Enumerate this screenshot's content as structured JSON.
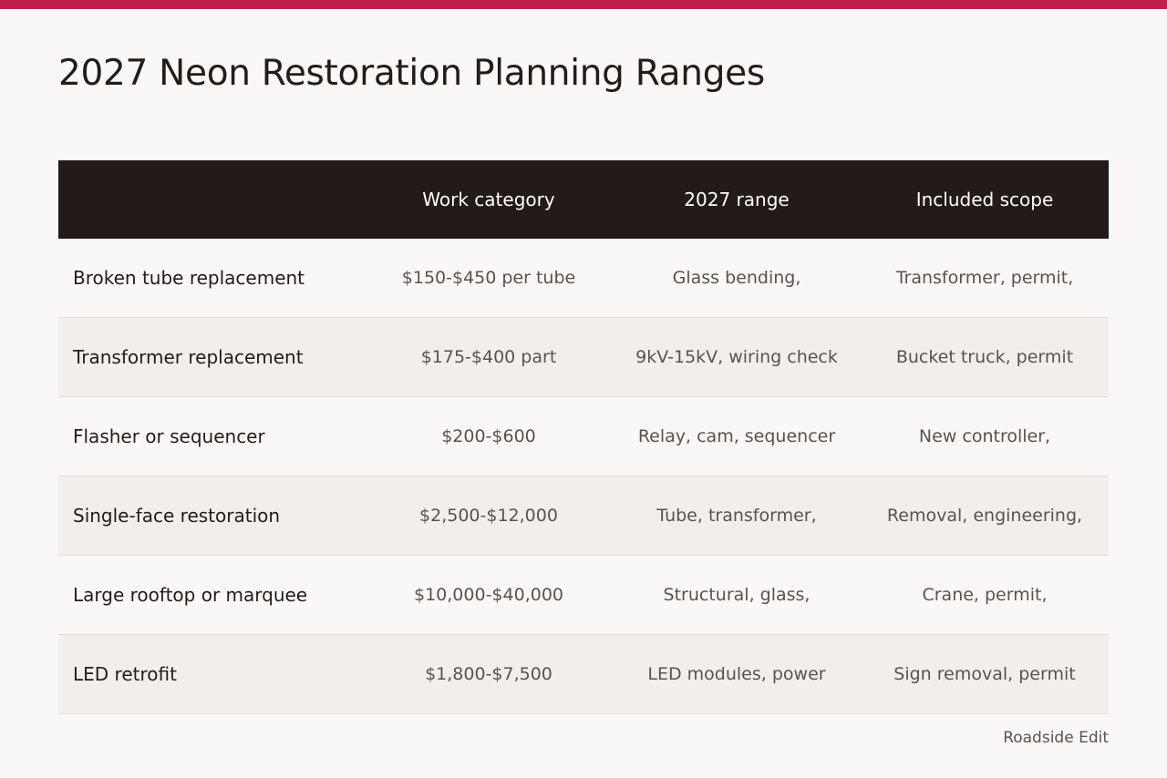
{
  "title": "2027 Neon Restoration Planning Ranges",
  "table": {
    "headers": [
      "",
      "Work category",
      "2027 range",
      "Included scope"
    ],
    "rows": [
      [
        "Broken tube replacement",
        "$150-$450 per tube",
        "Glass bending,",
        "Transformer, permit,"
      ],
      [
        "Transformer replacement",
        "$175-$400 part",
        "9kV-15kV, wiring check",
        "Bucket truck, permit"
      ],
      [
        "Flasher or sequencer",
        "$200-$600",
        "Relay, cam, sequencer",
        "New controller,"
      ],
      [
        "Single-face restoration",
        "$2,500-$12,000",
        "Tube, transformer,",
        "Removal, engineering,"
      ],
      [
        "Large rooftop or marquee",
        "$10,000-$40,000",
        "Structural, glass,",
        "Crane, permit,"
      ],
      [
        "LED retrofit",
        "$1,800-$7,500",
        "LED modules, power",
        "Sign removal, permit"
      ]
    ]
  },
  "source": "Roadside Edit",
  "colors": {
    "accent": "#bf1f4b",
    "header_bg": "#231b17",
    "page_bg": "#f9f8f6",
    "stripe_bg": "#f1eeeb"
  }
}
